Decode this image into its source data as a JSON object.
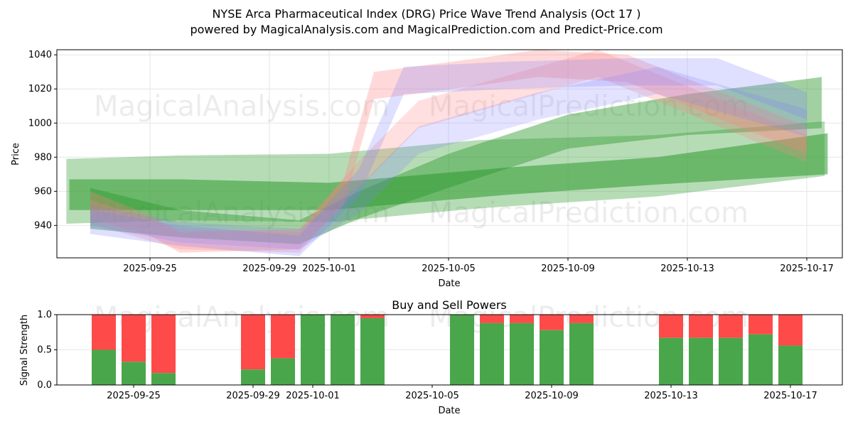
{
  "title_line1": "NYSE Arca Pharmaceutical Index (DRG) Price Wave Trend Analysis (Oct 17 )",
  "title_line2": "powered by MagicalAnalysis.com and MagicalPrediction.com and Predict-Price.com",
  "watermarks": [
    "MagicalAnalysis.com",
    "MagicalPrediction.com"
  ],
  "colors": {
    "buy": "#4aa64a",
    "sell": "#ff4a4a",
    "green": "#2e9a2e",
    "red": "#ff8080",
    "blue": "#8080ff"
  },
  "chart_data": [
    {
      "type": "area",
      "title": "",
      "xlabel": "Date",
      "ylabel": "Price",
      "ylim": [
        921,
        1043
      ],
      "yticks": [
        940,
        960,
        980,
        1000,
        1020,
        1040
      ],
      "xticks": [
        {
          "day": 3,
          "label": "2025-09-25"
        },
        {
          "day": 7,
          "label": "2025-09-29"
        },
        {
          "day": 9,
          "label": "2025-10-01"
        },
        {
          "day": 13,
          "label": "2025-10-05"
        },
        {
          "day": 17,
          "label": "2025-10-09"
        },
        {
          "day": 21,
          "label": "2025-10-13"
        },
        {
          "day": 25,
          "label": "2025-10-17"
        }
      ],
      "day0": "2025-09-22",
      "bands": [
        {
          "color": "green",
          "alpha": 0.35,
          "points": [
            [
              0.2,
              960,
              19
            ],
            [
              4,
              962,
              19
            ],
            [
              9,
              962,
              20
            ],
            [
              14,
              970,
              20
            ],
            [
              20,
              975,
              18
            ],
            [
              25.6,
              985,
              16
            ]
          ]
        },
        {
          "color": "green",
          "alpha": 0.55,
          "points": [
            [
              0.3,
              958,
              9
            ],
            [
              4,
              958,
              9
            ],
            [
              9,
              957,
              8
            ],
            [
              15,
              966,
              8
            ],
            [
              20,
              972,
              8
            ],
            [
              25.7,
              982,
              12
            ]
          ]
        },
        {
          "color": "green",
          "alpha": 0.45,
          "points": [
            [
              1,
              950,
              12
            ],
            [
              4,
              941,
              8
            ],
            [
              8,
              936,
              7
            ],
            [
              10,
              952,
              8
            ],
            [
              13,
              972,
              10
            ],
            [
              17,
              995,
              10
            ],
            [
              21,
              1005,
              12
            ],
            [
              25.5,
              1012,
              15
            ]
          ]
        },
        {
          "color": "red",
          "alpha": 0.3,
          "points": [
            [
              1,
              952,
              8
            ],
            [
              3,
              940,
              6
            ],
            [
              4,
              930,
              6
            ],
            [
              8,
              932,
              6
            ],
            [
              9.5,
              960,
              8
            ],
            [
              10.5,
              1022,
              8
            ],
            [
              14,
              1030,
              8
            ],
            [
              16,
              1035,
              8
            ],
            [
              19,
              1032,
              8
            ],
            [
              25,
              990,
              8
            ]
          ]
        },
        {
          "color": "red",
          "alpha": 0.25,
          "points": [
            [
              1,
              948,
              7
            ],
            [
              4,
              932,
              6
            ],
            [
              8,
              930,
              6
            ],
            [
              10,
              970,
              8
            ],
            [
              12,
              1005,
              8
            ],
            [
              16,
              1025,
              8
            ],
            [
              18,
              1035,
              8
            ],
            [
              25,
              985,
              8
            ]
          ]
        },
        {
          "color": "blue",
          "alpha": 0.25,
          "points": [
            [
              1,
              942,
              7
            ],
            [
              4,
              934,
              6
            ],
            [
              8,
              928,
              6
            ],
            [
              10,
              965,
              8
            ],
            [
              11.5,
              1025,
              8
            ],
            [
              15,
              1028,
              8
            ],
            [
              19,
              1030,
              8
            ],
            [
              22,
              1030,
              8
            ],
            [
              25,
              1010,
              8
            ]
          ]
        },
        {
          "color": "blue",
          "alpha": 0.22,
          "points": [
            [
              1,
              946,
              6
            ],
            [
              4,
              936,
              6
            ],
            [
              8,
              932,
              6
            ],
            [
              10,
              955,
              8
            ],
            [
              12,
              990,
              8
            ],
            [
              16,
              1010,
              8
            ],
            [
              20,
              1025,
              8
            ],
            [
              25,
              1000,
              8
            ]
          ]
        }
      ]
    },
    {
      "type": "bar",
      "title": "Buy and Sell Powers",
      "xlabel": "Date",
      "ylabel": "Signal Strength",
      "ylim": [
        0,
        1
      ],
      "yticks": [
        0.0,
        0.5,
        1.0
      ],
      "xticks": [
        {
          "day": 3,
          "label": "2025-09-25"
        },
        {
          "day": 7,
          "label": "2025-09-29"
        },
        {
          "day": 9,
          "label": "2025-10-01"
        },
        {
          "day": 13,
          "label": "2025-10-05"
        },
        {
          "day": 17,
          "label": "2025-10-09"
        },
        {
          "day": 21,
          "label": "2025-10-13"
        },
        {
          "day": 25,
          "label": "2025-10-17"
        }
      ],
      "days": [
        2,
        3,
        4,
        7,
        8,
        9,
        10,
        11,
        14,
        15,
        16,
        17,
        18,
        21,
        22,
        23,
        24,
        25
      ],
      "buy": [
        0.5,
        0.33,
        0.17,
        0.22,
        0.38,
        1.0,
        1.0,
        0.95,
        1.0,
        0.88,
        0.88,
        0.78,
        0.88,
        0.67,
        0.67,
        0.67,
        0.72,
        0.56
      ]
    }
  ]
}
